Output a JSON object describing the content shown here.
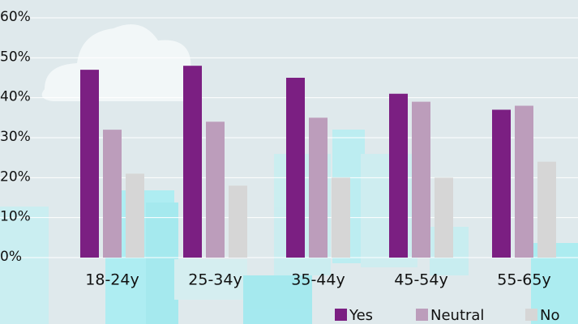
{
  "chart_data": {
    "type": "bar",
    "categories": [
      "18-24y",
      "25-34y",
      "35-44y",
      "45-54y",
      "55-65y"
    ],
    "series": [
      {
        "name": "Yes",
        "color": "#7b1f82",
        "values": [
          47,
          48,
          45,
          41,
          37
        ]
      },
      {
        "name": "Neutral",
        "color": "#bc9dbb",
        "values": [
          32,
          34,
          35,
          39,
          38
        ]
      },
      {
        "name": "No",
        "color": "#d6d6d6",
        "values": [
          21,
          18,
          20,
          20,
          24
        ]
      }
    ],
    "ylim": [
      0,
      60
    ],
    "yticks": [
      {
        "value": 0,
        "label": "0%"
      },
      {
        "value": 10,
        "label": "10%"
      },
      {
        "value": 20,
        "label": "20%"
      },
      {
        "value": 30,
        "label": "30%"
      },
      {
        "value": 40,
        "label": "40%"
      },
      {
        "value": 50,
        "label": "50%"
      },
      {
        "value": 60,
        "label": "60%"
      }
    ],
    "grid": true,
    "legend": "bottom-right"
  }
}
